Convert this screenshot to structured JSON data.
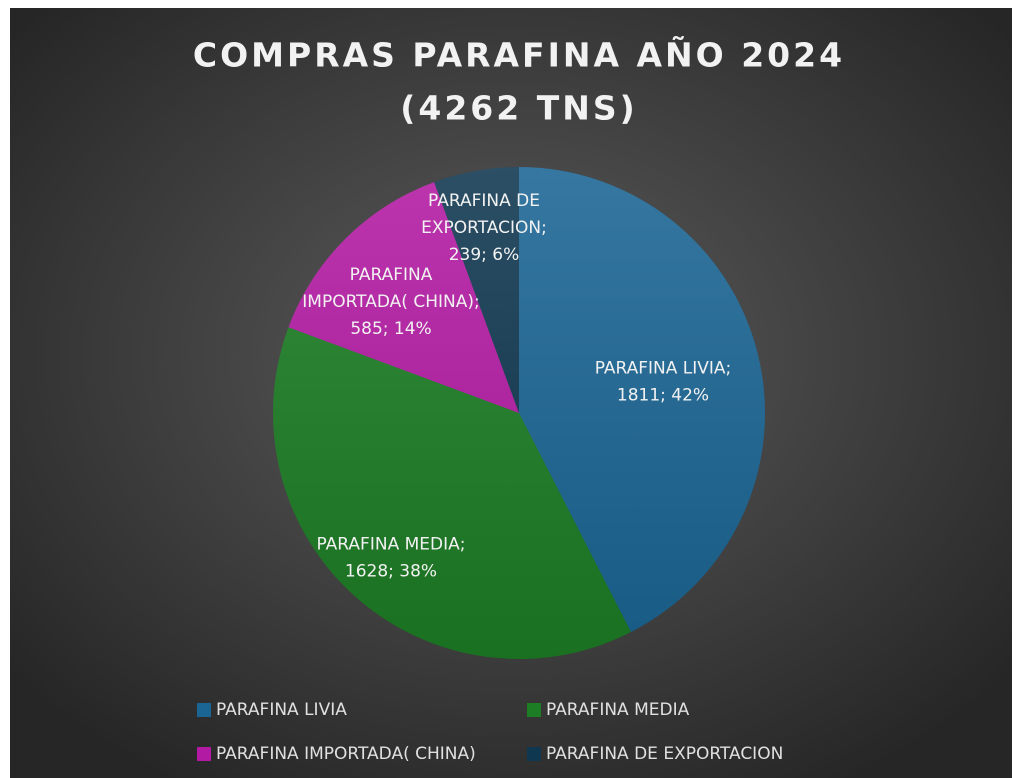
{
  "chart_data": {
    "type": "pie",
    "title": [
      "COMPRAS PARAFINA AÑO 2024",
      "(4262 TNS)"
    ],
    "categories": [
      "PARAFINA LIVIA",
      "PARAFINA MEDIA",
      "PARAFINA IMPORTADA( CHINA)",
      "PARAFINA DE EXPORTACION"
    ],
    "values": [
      1811,
      1628,
      585,
      239
    ],
    "value_labels": [
      [
        "PARAFINA LIVIA;",
        "1811; 42%"
      ],
      [
        "PARAFINA MEDIA;",
        "1628; 38%"
      ],
      [
        "PARAFINA",
        "IMPORTADA( CHINA);",
        "585; 14%"
      ],
      [
        "PARAFINA DE",
        "EXPORTACION;",
        "239; 6%"
      ]
    ],
    "colors": [
      "#1a6594",
      "#1c7d24",
      "#b31aa3",
      "#0f3750"
    ],
    "legend": "bottom"
  }
}
